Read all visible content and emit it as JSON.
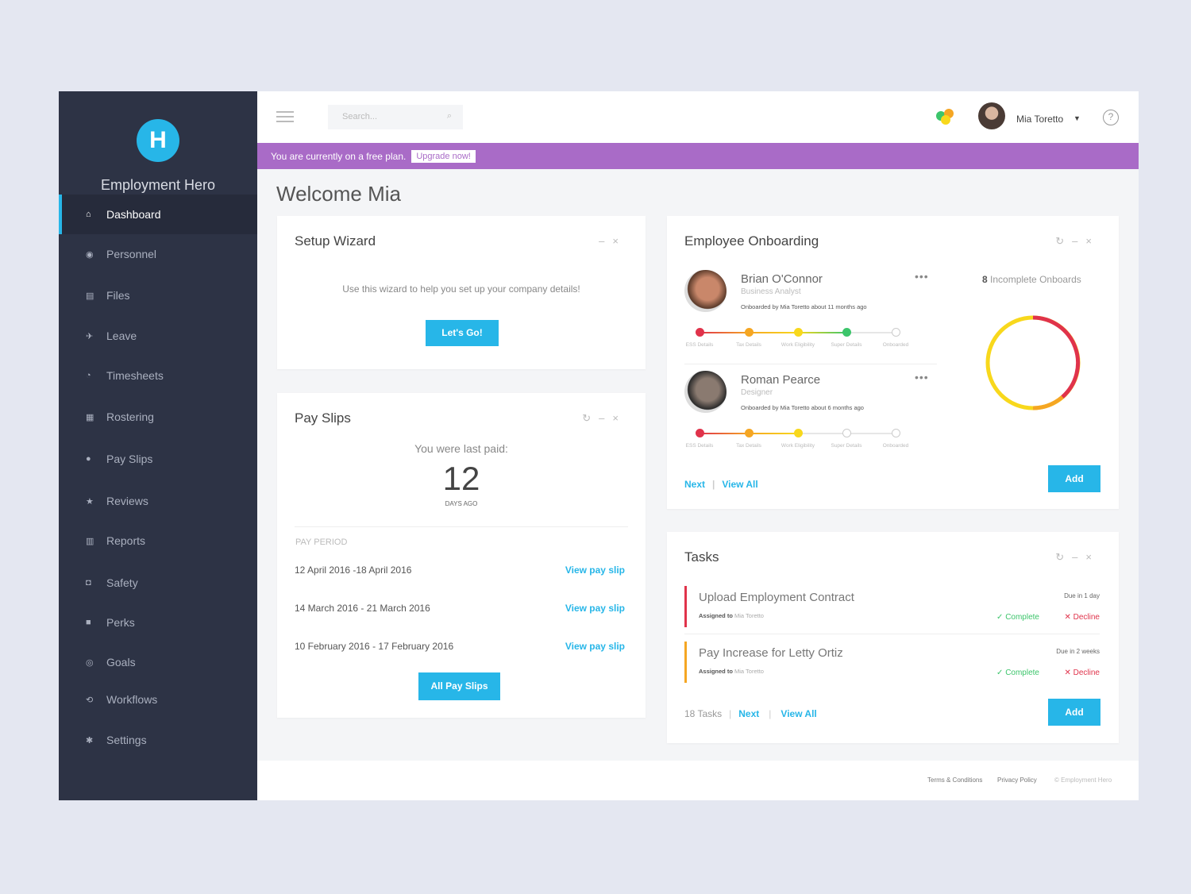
{
  "app": {
    "brand": "Employment Hero",
    "logo_letter": "H"
  },
  "sidebar": {
    "items": [
      {
        "label": "Dashboard",
        "icon": "home-icon",
        "glyph": "⌂"
      },
      {
        "label": "Personnel",
        "icon": "people-icon",
        "glyph": "◉"
      },
      {
        "label": "Files",
        "icon": "files-icon",
        "glyph": "▤"
      },
      {
        "label": "Leave",
        "icon": "plane-icon",
        "glyph": "✈"
      },
      {
        "label": "Timesheets",
        "icon": "timesheets-icon",
        "glyph": "◔"
      },
      {
        "label": "Rostering",
        "icon": "rostering-icon",
        "glyph": "▦"
      },
      {
        "label": "Pay Slips",
        "icon": "payslips-icon",
        "glyph": "●"
      },
      {
        "label": "Reviews",
        "icon": "star-icon",
        "glyph": "★"
      },
      {
        "label": "Reports",
        "icon": "bar-chart-icon",
        "glyph": "▥"
      },
      {
        "label": "Safety",
        "icon": "safety-icon",
        "glyph": "◘"
      },
      {
        "label": "Perks",
        "icon": "perks-icon",
        "glyph": "■"
      },
      {
        "label": "Goals",
        "icon": "goals-icon",
        "glyph": "◎"
      },
      {
        "label": "Workflows",
        "icon": "workflows-icon",
        "glyph": "⟲"
      },
      {
        "label": "Settings",
        "icon": "gear-icon",
        "glyph": "✱"
      }
    ],
    "active": "Dashboard"
  },
  "header": {
    "search_placeholder": "Search...",
    "user_name": "Mia Toretto"
  },
  "banner": {
    "text": "You are currently on a free plan.",
    "upgrade": "Upgrade now!"
  },
  "page_title": "Welcome Mia",
  "setup": {
    "title": "Setup Wizard",
    "text": "Use this wizard to help you set up your company details!",
    "button": "Let's Go!"
  },
  "payslips": {
    "title": "Pay Slips",
    "last_paid": "You were last paid:",
    "days": "12",
    "days_label": "DAYS AGO",
    "period_header": "PAY PERIOD",
    "rows": [
      {
        "period": "12 April 2016 -18 April 2016",
        "link": "View pay slip"
      },
      {
        "period": "14 March 2016 - 21 March 2016",
        "link": "View pay slip"
      },
      {
        "period": "10 February 2016 - 17 February 2016",
        "link": "View pay slip"
      }
    ],
    "button": "All Pay Slips"
  },
  "onboarding": {
    "title": "Employee Onboarding",
    "steps": [
      "ESS Details",
      "Tax Details",
      "Work Eligibility",
      "Super Details",
      "Onboarded"
    ],
    "employees": [
      {
        "name": "Brian O'Connor",
        "role": "Business Analyst",
        "note": "Onboarded by Mia Toretto about 11 months ago",
        "completed": 4
      },
      {
        "name": "Roman Pearce",
        "role": "Designer",
        "note": "Onboarded by Mia Toretto about 6 months ago",
        "completed": 3
      }
    ],
    "incomplete_count": "8",
    "incomplete_label": "Incomplete Onboards",
    "next": "Next",
    "view_all": "View All",
    "add": "Add"
  },
  "tasks": {
    "title": "Tasks",
    "items": [
      {
        "title": "Upload Employment Contract",
        "assigned_prefix": "Assigned to",
        "assigned": "Mia Toretto",
        "due": "Due in 1 day",
        "color": "#e0334b"
      },
      {
        "title": "Pay Increase for Letty Ortiz",
        "assigned_prefix": "Assigned to",
        "assigned": "Mia Toretto",
        "due": "Due in 2 weeks",
        "color": "#f5a623"
      }
    ],
    "complete": "Complete",
    "decline": "Decline",
    "count": "18 Tasks",
    "next": "Next",
    "view_all": "View All",
    "add": "Add"
  },
  "footer": {
    "terms": "Terms & Conditions",
    "privacy": "Privacy Policy",
    "copyright": "© Employment Hero"
  },
  "colors": {
    "accent": "#27b6e8",
    "sidebar": "#2d3345",
    "banner": "#a96bc7",
    "step_colors": [
      "#e0334b",
      "#f5a623",
      "#f8d81c",
      "#3cc56b"
    ]
  }
}
